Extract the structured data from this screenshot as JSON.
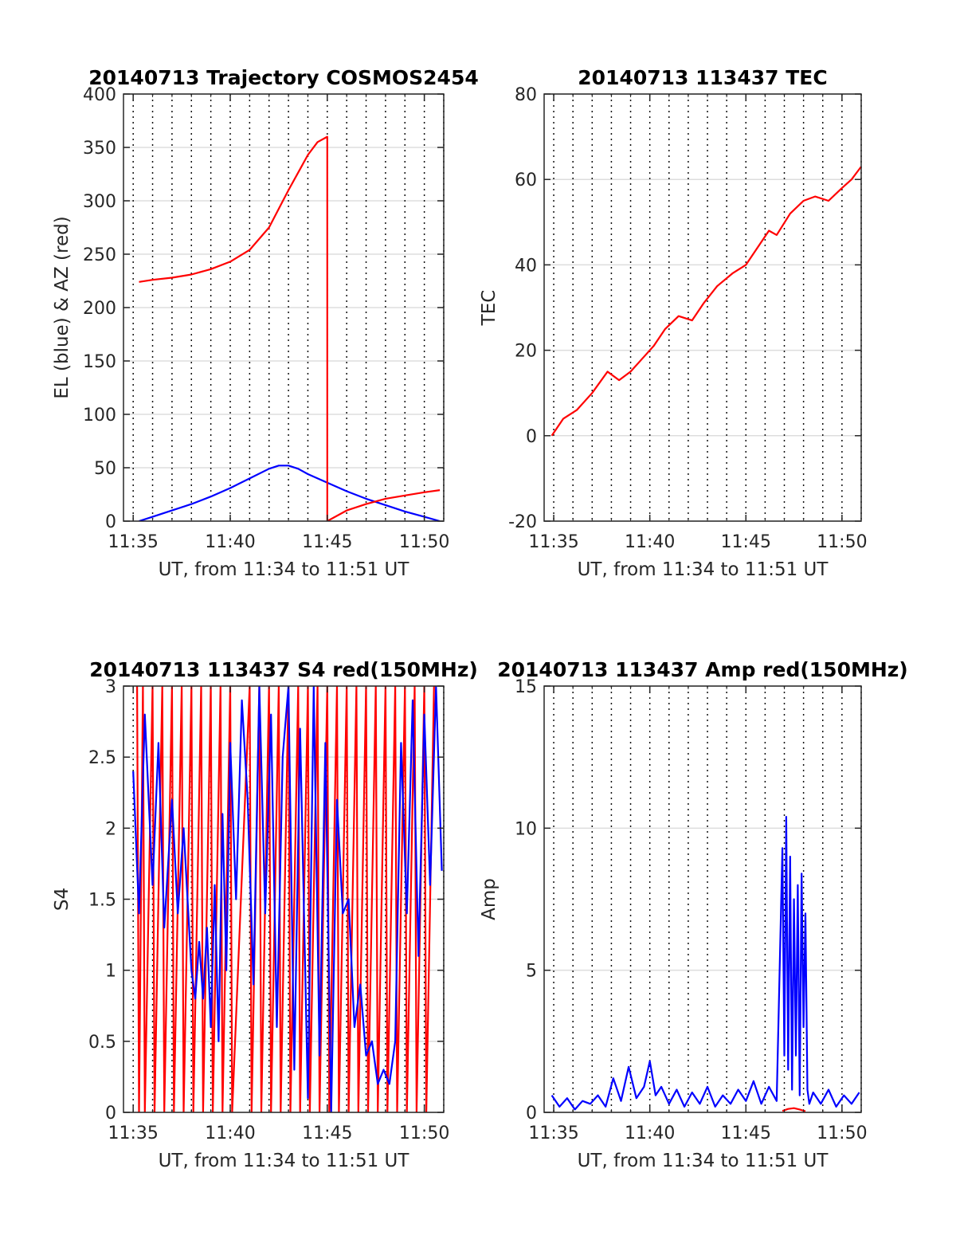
{
  "chart_data": [
    {
      "type": "line",
      "title": "20140713 Trajectory COSMOS2454",
      "xlabel": "UT, from 11:34 to 11:51 UT",
      "ylabel": "EL (blue) & AZ (red)",
      "xlim_min": [
        694.5,
        711
      ],
      "ylim": [
        0,
        400
      ],
      "xticks": [
        695,
        700,
        705,
        710
      ],
      "xtick_labels": [
        "11:35",
        "11:40",
        "11:45",
        "11:50"
      ],
      "yticks": [
        0,
        50,
        100,
        150,
        200,
        250,
        300,
        350,
        400
      ],
      "ytick_labels": [
        "0",
        "50",
        "100",
        "150",
        "200",
        "250",
        "300",
        "350",
        "400"
      ],
      "grid": "on",
      "series": [
        {
          "color": "#0000ff",
          "x": [
            695.3,
            696,
            697,
            698,
            699,
            700,
            701,
            702,
            702.5,
            703,
            703.5,
            704,
            705,
            706,
            707,
            708,
            709,
            710,
            710.8
          ],
          "y": [
            0,
            4,
            10,
            16,
            23,
            31,
            40,
            49,
            52,
            52,
            49,
            44,
            36,
            28,
            21,
            15,
            9,
            4,
            0
          ]
        },
        {
          "color": "#ff0000",
          "x": [
            695.3,
            696,
            697,
            698,
            699,
            700,
            701,
            702,
            703,
            704,
            704.5,
            705,
            705,
            706,
            707,
            708,
            709,
            710,
            710.8
          ],
          "y": [
            224,
            226,
            228,
            231,
            236,
            243,
            254,
            275,
            310,
            343,
            355,
            360,
            0,
            10,
            16,
            21,
            24,
            27,
            29
          ]
        }
      ]
    },
    {
      "type": "line",
      "title": "20140713 113437 TEC",
      "xlabel": "UT, from 11:34 to 11:51 UT",
      "ylabel": "TEC",
      "xlim_min": [
        694.5,
        711
      ],
      "ylim": [
        -20,
        80
      ],
      "xticks": [
        695,
        700,
        705,
        710
      ],
      "xtick_labels": [
        "11:35",
        "11:40",
        "11:45",
        "11:50"
      ],
      "yticks": [
        -20,
        0,
        20,
        40,
        60,
        80
      ],
      "ytick_labels": [
        "-20",
        "0",
        "20",
        "40",
        "60",
        "80"
      ],
      "grid": "on",
      "series": [
        {
          "color": "#ff0000",
          "x": [
            694.9,
            695.5,
            696.2,
            697,
            697.8,
            698.4,
            699,
            699.6,
            700.2,
            700.8,
            701.5,
            702.2,
            702.8,
            703.5,
            704.3,
            705,
            705.6,
            706.2,
            706.6,
            707.3,
            708,
            708.6,
            709.3,
            710,
            710.5,
            711
          ],
          "y": [
            0,
            4,
            6,
            10,
            15,
            13,
            15,
            18,
            21,
            25,
            28,
            27,
            31,
            35,
            38,
            40,
            44,
            48,
            47,
            52,
            55,
            56,
            55,
            58,
            60,
            63
          ]
        }
      ]
    },
    {
      "type": "line",
      "title": "20140713 113437 S4 red(150MHz)",
      "xlabel": "UT, from 11:34 to 11:51 UT",
      "ylabel": "S4",
      "xlim_min": [
        694.5,
        711
      ],
      "ylim": [
        0,
        3
      ],
      "xticks": [
        695,
        700,
        705,
        710
      ],
      "xtick_labels": [
        "11:35",
        "11:40",
        "11:45",
        "11:50"
      ],
      "yticks": [
        0,
        0.5,
        1,
        1.5,
        2,
        2.5,
        3
      ],
      "ytick_labels": [
        "0",
        "0.5",
        "1",
        "1.5",
        "2",
        "2.5",
        "3"
      ],
      "grid": "on",
      "series": [
        {
          "color": "#ff0000",
          "x": [
            695.2,
            695.3,
            695.5,
            695.6,
            696,
            696.1,
            696.5,
            696.6,
            697,
            697.1,
            697.5,
            697.6,
            698,
            698.1,
            698.5,
            698.6,
            699,
            699.1,
            699.5,
            699.6,
            700,
            700.1,
            701,
            701.1,
            701.5,
            701.6,
            702,
            702.1,
            702.5,
            702.6,
            703,
            703.1,
            703.5,
            703.6,
            704,
            704.1,
            704.5,
            704.6,
            705,
            705.1,
            705.5,
            705.6,
            706,
            706.1,
            706.5,
            706.6,
            707,
            707.1,
            707.5,
            707.6,
            708,
            708.1,
            708.5,
            708.6,
            709,
            709.1,
            709.5,
            709.6,
            710,
            710.1,
            710.5
          ],
          "y": [
            3,
            0,
            3,
            0,
            3,
            0,
            3,
            0,
            3,
            0,
            3,
            0,
            3,
            0,
            3,
            0,
            3,
            0,
            3,
            0,
            3,
            0,
            3,
            0,
            3,
            0,
            3,
            0,
            3,
            0,
            3,
            0,
            3,
            0,
            3,
            0,
            3,
            0,
            3,
            0,
            3,
            0,
            3,
            0,
            3,
            0,
            3,
            0,
            3,
            0,
            3,
            0,
            3,
            0,
            3,
            0,
            3,
            0,
            3,
            0,
            3
          ]
        },
        {
          "color": "#0000ff",
          "x": [
            695,
            695.3,
            695.6,
            696,
            696.3,
            696.6,
            697,
            697.3,
            697.6,
            698,
            698.2,
            698.4,
            698.6,
            698.8,
            699,
            699.2,
            699.4,
            699.6,
            699.8,
            700,
            700.3,
            700.6,
            700.9,
            701.2,
            701.5,
            701.8,
            702.1,
            702.4,
            702.7,
            703,
            703.3,
            703.6,
            704,
            704.3,
            704.6,
            704.9,
            705.2,
            705.5,
            705.8,
            706.1,
            706.4,
            706.7,
            707,
            707.3,
            707.6,
            707.9,
            708.2,
            708.5,
            708.8,
            709.1,
            709.4,
            709.7,
            710,
            710.3,
            710.6,
            710.9
          ],
          "y": [
            2.4,
            1.4,
            2.8,
            1.6,
            2.6,
            1.3,
            2.2,
            1.4,
            2.0,
            1.0,
            0.8,
            1.2,
            0.8,
            1.3,
            0.6,
            1.6,
            0.5,
            2.1,
            1.0,
            2.6,
            1.5,
            2.9,
            2.2,
            0.9,
            3.0,
            1.4,
            2.8,
            0.6,
            2.5,
            3.0,
            0.3,
            2.7,
            0.1,
            3.0,
            0.4,
            2.6,
            0.0,
            2.2,
            1.4,
            1.5,
            0.6,
            0.9,
            0.4,
            0.5,
            0.2,
            0.3,
            0.2,
            0.5,
            2.6,
            1.4,
            2.9,
            1.1,
            2.8,
            1.6,
            3.0,
            1.7
          ]
        }
      ]
    },
    {
      "type": "line",
      "title": "20140713 113437 Amp red(150MHz)",
      "xlabel": "UT, from 11:34 to 11:51 UT",
      "ylabel": "Amp",
      "xlim_min": [
        694.5,
        711
      ],
      "ylim": [
        0,
        15
      ],
      "xticks": [
        695,
        700,
        705,
        710
      ],
      "xtick_labels": [
        "11:35",
        "11:40",
        "11:45",
        "11:50"
      ],
      "yticks": [
        0,
        5,
        10,
        15
      ],
      "ytick_labels": [
        "0",
        "5",
        "10",
        "15"
      ],
      "grid": "on",
      "series": [
        {
          "color": "#ff0000",
          "x": [
            706.9,
            707.2,
            707.5,
            707.8,
            708.1
          ],
          "y": [
            0.05,
            0.12,
            0.15,
            0.1,
            0.04
          ]
        },
        {
          "color": "#0000ff",
          "x": [
            694.9,
            695.3,
            695.7,
            696.1,
            696.5,
            696.9,
            697.3,
            697.7,
            698.1,
            698.5,
            698.9,
            699.3,
            699.7,
            700.0,
            700.3,
            700.6,
            701.0,
            701.4,
            701.8,
            702.2,
            702.6,
            703.0,
            703.4,
            703.8,
            704.2,
            704.6,
            705.0,
            705.4,
            705.8,
            706.2,
            706.6,
            706.9,
            707.0,
            707.1,
            707.2,
            707.3,
            707.4,
            707.5,
            707.6,
            707.7,
            707.8,
            707.9,
            708.0,
            708.1,
            708.2,
            708.3,
            708.5,
            708.9,
            709.3,
            709.7,
            710.1,
            710.5,
            710.9
          ],
          "y": [
            0.6,
            0.2,
            0.5,
            0.1,
            0.4,
            0.3,
            0.6,
            0.2,
            1.2,
            0.4,
            1.6,
            0.5,
            0.9,
            1.8,
            0.6,
            0.9,
            0.3,
            0.8,
            0.2,
            0.7,
            0.3,
            0.9,
            0.2,
            0.6,
            0.3,
            0.8,
            0.4,
            1.1,
            0.3,
            0.9,
            0.4,
            9.3,
            2.0,
            10.4,
            1.5,
            9.0,
            0.8,
            7.5,
            2.0,
            8.0,
            0.6,
            8.4,
            3.0,
            7.0,
            0.8,
            0.3,
            0.7,
            0.3,
            0.8,
            0.2,
            0.6,
            0.3,
            0.7
          ]
        }
      ]
    }
  ]
}
